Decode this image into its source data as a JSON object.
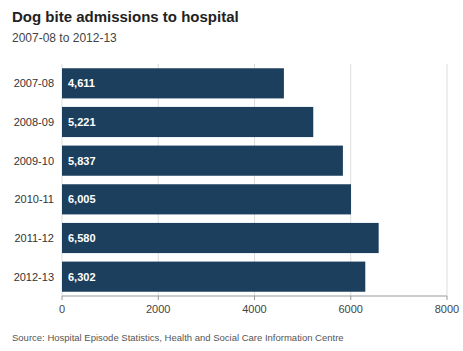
{
  "chart_data": {
    "type": "bar",
    "orientation": "horizontal",
    "title": "Dog bite admissions to hospital",
    "subtitle": "2007-08 to 2012-13",
    "annotations": [
      "Source: Hospital Episode Statistics, Health and Social Care Information Centre"
    ],
    "categories": [
      "2007-08",
      "2008-09",
      "2009-10",
      "2010-11",
      "2011-12",
      "2012-13"
    ],
    "values": [
      4611,
      5221,
      5837,
      6005,
      6580,
      6302
    ],
    "value_labels": [
      "4,611",
      "5,221",
      "5,837",
      "6,005",
      "6,580",
      "6,302"
    ],
    "data_labels": true,
    "color": "#1c3f5e",
    "xlim": [
      0,
      8000
    ],
    "xticks": [
      0,
      2000,
      4000,
      6000,
      8000
    ],
    "grid": true
  }
}
